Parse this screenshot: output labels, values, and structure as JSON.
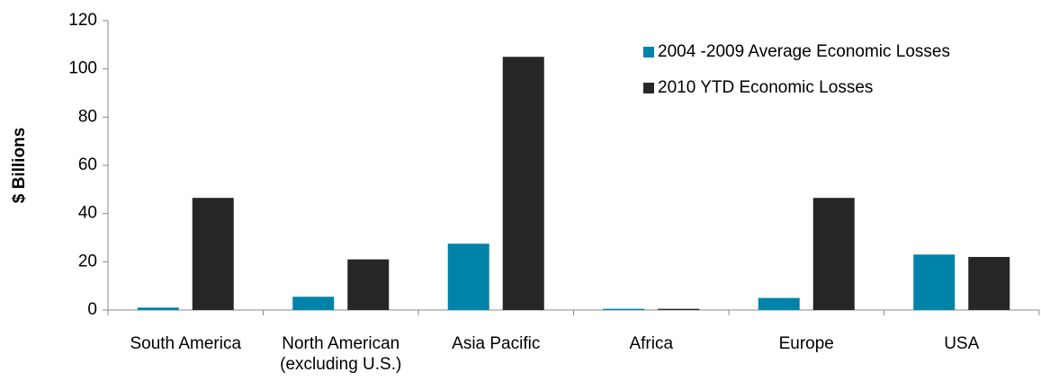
{
  "chart_data": {
    "type": "bar",
    "y_label": "$ Billions",
    "categories": [
      "South America",
      "North American\n(excluding U.S.)",
      "Asia Pacific",
      "Africa",
      "Europe",
      "USA"
    ],
    "series": [
      {
        "name": "2004 -2009 Average Economic Losses",
        "color": "#0083a9",
        "values": [
          1,
          5.5,
          27.5,
          0.5,
          5,
          23
        ]
      },
      {
        "name": "2010 YTD  Economic Losses",
        "color": "#262626",
        "values": [
          46.5,
          21,
          105,
          0.5,
          46.5,
          22
        ]
      }
    ],
    "ylim": [
      0,
      120
    ],
    "yticks": [
      0,
      20,
      40,
      60,
      80,
      100,
      120
    ],
    "grid": false,
    "legend": "upper right"
  }
}
